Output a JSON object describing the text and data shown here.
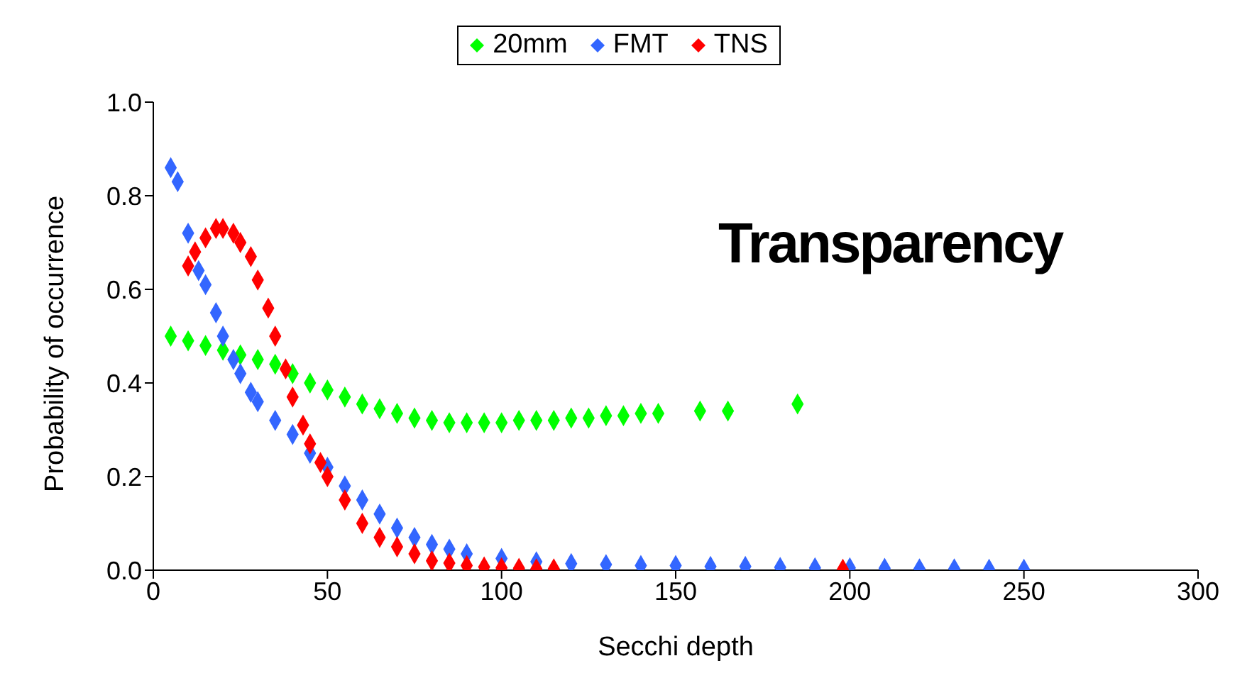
{
  "chart_data": {
    "type": "scatter",
    "annotations": [
      "Transparency"
    ],
    "xlabel": "Secchi depth",
    "ylabel": "Probability of occurrence",
    "xlim": [
      0,
      300
    ],
    "xticks": [
      0,
      50,
      100,
      150,
      200,
      250,
      300
    ],
    "ylim": [
      0,
      1
    ],
    "yticks": [
      {
        "value": 0,
        "label": "0.0"
      },
      {
        "value": 0.2,
        "label": "0.2"
      },
      {
        "value": 0.4,
        "label": "0.4"
      },
      {
        "value": 0.6,
        "label": "0.6"
      },
      {
        "value": 0.8,
        "label": "0.8"
      },
      {
        "value": 1,
        "label": "1.0"
      }
    ],
    "grid": false,
    "legend": "top",
    "marker": "diamond",
    "series": [
      {
        "name": "20mm",
        "color": "#00ff00",
        "x": [
          5,
          10,
          15,
          20,
          25,
          30,
          35,
          40,
          45,
          50,
          55,
          60,
          65,
          70,
          75,
          80,
          85,
          90,
          95,
          100,
          105,
          110,
          115,
          120,
          125,
          130,
          135,
          140,
          145,
          157,
          165,
          185
        ],
        "values": [
          0.5,
          0.49,
          0.48,
          0.47,
          0.46,
          0.45,
          0.44,
          0.42,
          0.4,
          0.385,
          0.37,
          0.355,
          0.345,
          0.335,
          0.325,
          0.32,
          0.315,
          0.315,
          0.315,
          0.315,
          0.32,
          0.32,
          0.32,
          0.325,
          0.325,
          0.33,
          0.33,
          0.335,
          0.335,
          0.34,
          0.34,
          0.355
        ]
      },
      {
        "name": "FMT",
        "color": "#3366ff",
        "x": [
          5,
          7,
          10,
          13,
          15,
          18,
          20,
          23,
          25,
          28,
          30,
          35,
          40,
          45,
          50,
          55,
          60,
          65,
          70,
          75,
          80,
          85,
          90,
          100,
          110,
          120,
          130,
          140,
          150,
          160,
          170,
          180,
          190,
          200,
          210,
          220,
          230,
          240,
          250
        ],
        "values": [
          0.86,
          0.83,
          0.72,
          0.64,
          0.61,
          0.55,
          0.5,
          0.45,
          0.42,
          0.38,
          0.36,
          0.32,
          0.29,
          0.25,
          0.22,
          0.18,
          0.15,
          0.12,
          0.09,
          0.07,
          0.055,
          0.045,
          0.035,
          0.025,
          0.018,
          0.014,
          0.012,
          0.01,
          0.01,
          0.008,
          0.008,
          0.006,
          0.005,
          0.005,
          0.004,
          0.003,
          0.003,
          0.002,
          0.002
        ]
      },
      {
        "name": "TNS",
        "color": "#ff0000",
        "x": [
          10,
          12,
          15,
          18,
          20,
          23,
          25,
          28,
          30,
          33,
          35,
          38,
          40,
          43,
          45,
          48,
          50,
          55,
          60,
          65,
          70,
          75,
          80,
          85,
          90,
          95,
          100,
          105,
          110,
          115,
          198
        ],
        "values": [
          0.65,
          0.68,
          0.71,
          0.73,
          0.73,
          0.72,
          0.7,
          0.67,
          0.62,
          0.56,
          0.5,
          0.43,
          0.37,
          0.31,
          0.27,
          0.23,
          0.2,
          0.15,
          0.1,
          0.07,
          0.05,
          0.035,
          0.02,
          0.015,
          0.01,
          0.007,
          0.005,
          0.004,
          0.003,
          0.003,
          0.002
        ]
      }
    ]
  }
}
